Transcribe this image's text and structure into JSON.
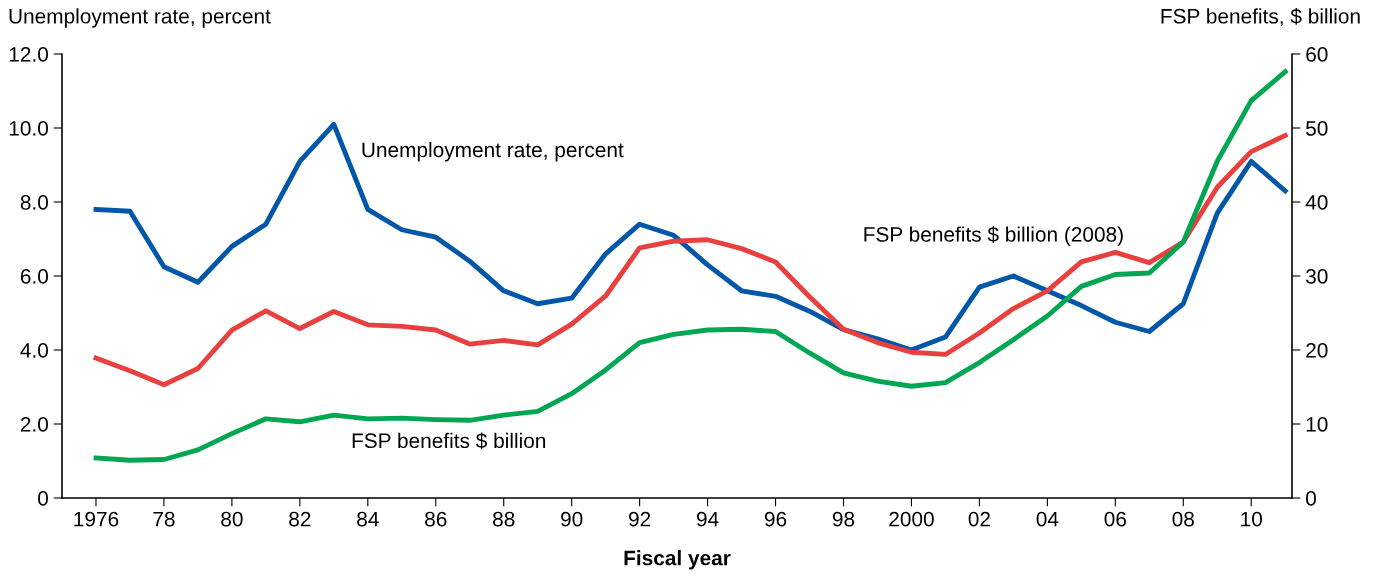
{
  "chart_data": {
    "type": "line",
    "xlabel": "Fiscal year",
    "ylabel": "Unemployment rate, percent",
    "y2label": "FSP benefits, $ billion",
    "x": [
      1976,
      1977,
      1978,
      1979,
      1980,
      1981,
      1982,
      1983,
      1984,
      1985,
      1986,
      1987,
      1988,
      1989,
      1990,
      1991,
      1992,
      1993,
      1994,
      1995,
      1996,
      1997,
      1998,
      1999,
      2000,
      2001,
      2002,
      2003,
      2004,
      2005,
      2006,
      2007,
      2008,
      2009,
      2010,
      2011
    ],
    "series": [
      {
        "name": "Unemployment rate, percent",
        "color": "#0057a8",
        "values": [
          7.8,
          7.75,
          6.25,
          5.83,
          6.8,
          7.4,
          9.1,
          10.1,
          7.8,
          7.25,
          7.05,
          6.4,
          5.6,
          5.25,
          5.4,
          6.6,
          7.4,
          7.1,
          6.3,
          5.6,
          5.45,
          5.05,
          4.55,
          4.3,
          4.0,
          4.35,
          5.7,
          6.0,
          5.6,
          5.2,
          4.75,
          4.5,
          5.25,
          7.7,
          9.1,
          8.3
        ]
      },
      {
        "name": "FSP benefits $ billion (2008)",
        "color": "#e8403f",
        "axis": "y2",
        "values": [
          18.9,
          17.2,
          15.3,
          17.5,
          22.7,
          25.3,
          22.9,
          25.2,
          23.4,
          23.2,
          22.7,
          20.8,
          21.3,
          20.7,
          23.5,
          27.3,
          33.8,
          34.7,
          34.9,
          33.7,
          31.9,
          27.2,
          22.8,
          21.0,
          19.7,
          19.4,
          22.3,
          25.6,
          28.0,
          31.9,
          33.2,
          31.8,
          34.6,
          42.0,
          46.8,
          49.0
        ]
      },
      {
        "name": "FSP benefits $ billion",
        "color": "#00a651",
        "axis": "y2",
        "values": [
          5.4,
          5.1,
          5.2,
          6.5,
          8.7,
          10.7,
          10.3,
          11.2,
          10.7,
          10.8,
          10.6,
          10.5,
          11.2,
          11.7,
          14.1,
          17.3,
          21.0,
          22.1,
          22.7,
          22.8,
          22.5,
          19.6,
          16.9,
          15.8,
          15.1,
          15.6,
          18.3,
          21.4,
          24.6,
          28.6,
          30.2,
          30.4,
          34.6,
          45.5,
          53.7,
          57.6
        ]
      }
    ],
    "xlim": [
      1975,
      2011.2
    ],
    "xticks": [
      {
        "value": 1976,
        "label": "1976"
      },
      {
        "value": 1978,
        "label": "78"
      },
      {
        "value": 1980,
        "label": "80"
      },
      {
        "value": 1982,
        "label": "82"
      },
      {
        "value": 1984,
        "label": "84"
      },
      {
        "value": 1986,
        "label": "86"
      },
      {
        "value": 1988,
        "label": "88"
      },
      {
        "value": 1990,
        "label": "90"
      },
      {
        "value": 1992,
        "label": "92"
      },
      {
        "value": 1994,
        "label": "94"
      },
      {
        "value": 1996,
        "label": "96"
      },
      {
        "value": 1998,
        "label": "98"
      },
      {
        "value": 2000,
        "label": "2000"
      },
      {
        "value": 2002,
        "label": "02"
      },
      {
        "value": 2004,
        "label": "04"
      },
      {
        "value": 2006,
        "label": "06"
      },
      {
        "value": 2008,
        "label": "08"
      },
      {
        "value": 2010,
        "label": "10"
      }
    ],
    "ylim": [
      0,
      12
    ],
    "yticks": [
      0,
      {
        "value": 2,
        "label": "2.0"
      },
      {
        "value": 4,
        "label": "4.0"
      },
      {
        "value": 6,
        "label": "6.0"
      },
      {
        "value": 8,
        "label": "8.0"
      },
      {
        "value": 10,
        "label": "10.0"
      },
      {
        "value": 12,
        "label": "12.0"
      }
    ],
    "y2lim": [
      0,
      60
    ],
    "y2ticks": [
      0,
      10,
      20,
      30,
      40,
      50,
      60
    ],
    "grid": false,
    "legend": false,
    "marker": "none",
    "line_style": "solid"
  }
}
